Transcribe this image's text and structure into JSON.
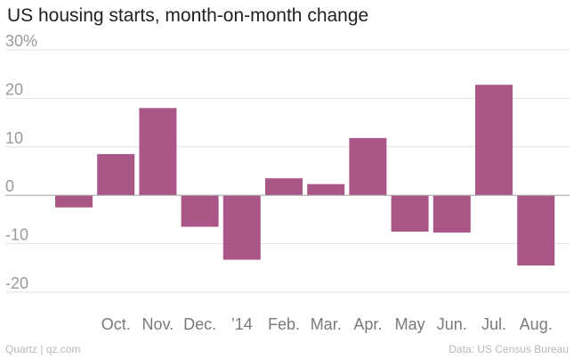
{
  "chart_data": {
    "type": "bar",
    "title": "US housing starts, month-on-month change",
    "xlabel": "",
    "ylabel": "",
    "categories": [
      "",
      "Oct.",
      "Nov.",
      "Dec.",
      "’14",
      "Feb.",
      "Mar.",
      "Apr.",
      "May",
      "Jun.",
      "Jul.",
      "Aug."
    ],
    "values": [
      -2.5,
      8.5,
      18,
      -6.5,
      -13.3,
      3.5,
      2.3,
      11.8,
      -7.5,
      -7.7,
      22.8,
      -14.5
    ],
    "ylim": [
      -20,
      30
    ],
    "yticks": [
      -20,
      -10,
      0,
      10,
      20,
      30
    ],
    "ytick_labels": [
      "-20",
      "-10",
      "0",
      "10",
      "20",
      "30%"
    ],
    "grid": true,
    "colors": {
      "bar": "#aa5687",
      "grid": "#e3e3e3",
      "zero_line": "#aaaaaa"
    }
  },
  "footer": {
    "source_left": "Quartz | qz.com",
    "source_right": "Data: US Census Bureau"
  }
}
